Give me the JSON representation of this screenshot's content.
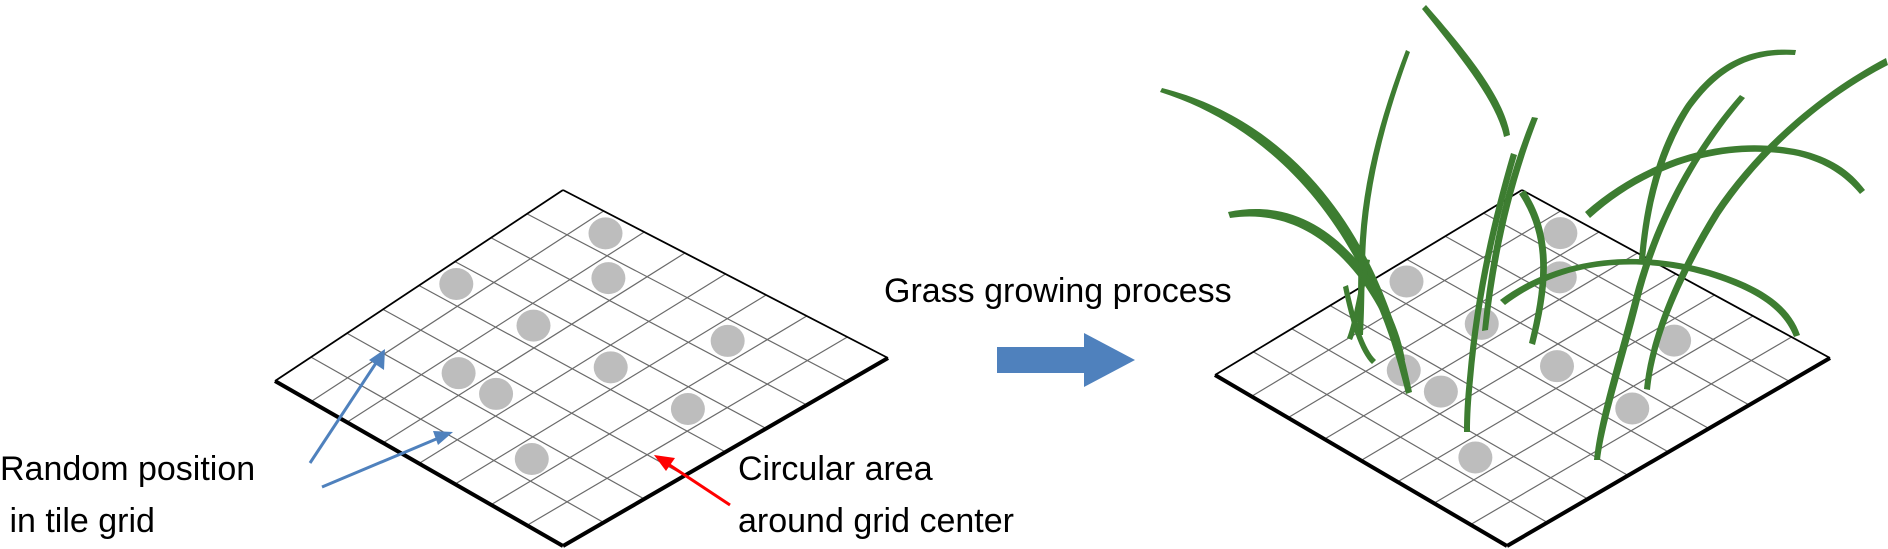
{
  "title": "Grass growing process diagram",
  "colors": {
    "blue_arrow": "#4f81bd",
    "red_arrow": "#ff0000",
    "grass": "#3d7d31",
    "dot": "#bdbdbd",
    "grid": "#6a6a6a"
  },
  "labels": {
    "random_position_line1": "Random position",
    "random_position_line2": " in tile grid",
    "circular_area_line1": "Circular area",
    "circular_area_line2": "around grid center",
    "process": "Grass growing process"
  },
  "grid": {
    "rows": 8,
    "cols": 8
  },
  "left_tile_dots": [
    {
      "row": 0,
      "col": 1
    },
    {
      "row": 1,
      "col": 2
    },
    {
      "row": 1,
      "col": 5
    },
    {
      "row": 3,
      "col": 0
    },
    {
      "row": 3,
      "col": 2
    },
    {
      "row": 3,
      "col": 4
    },
    {
      "row": 3,
      "col": 6
    },
    {
      "row": 5,
      "col": 2
    },
    {
      "row": 5,
      "col": 3
    },
    {
      "row": 6,
      "col": 5
    }
  ],
  "right_tile_dots": [
    {
      "row": 0,
      "col": 1
    },
    {
      "row": 1,
      "col": 2
    },
    {
      "row": 1,
      "col": 5
    },
    {
      "row": 3,
      "col": 0
    },
    {
      "row": 3,
      "col": 2
    },
    {
      "row": 3,
      "col": 4
    },
    {
      "row": 3,
      "col": 6
    },
    {
      "row": 5,
      "col": 2
    },
    {
      "row": 5,
      "col": 3
    },
    {
      "row": 6,
      "col": 5
    }
  ]
}
